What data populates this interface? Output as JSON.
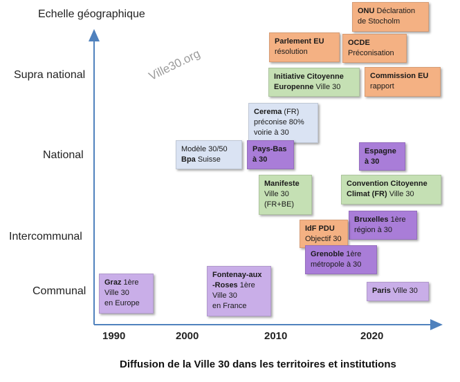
{
  "axis": {
    "y_title": "Echelle géographique",
    "levels": [
      "Supra national",
      "National",
      "Intercommunal",
      "Communal"
    ],
    "x_ticks": [
      "1990",
      "2000",
      "2010",
      "2020"
    ],
    "axis_color": "#4f81bd"
  },
  "title": "Diffusion de la Ville 30 dans les territoires et institutions",
  "watermark": "Ville30.org",
  "colors": {
    "orange": "#f4b183",
    "green": "#c5e0b4",
    "blue": "#dae3f3",
    "purple": "#a97dd8",
    "lilac": "#c9aee8"
  },
  "boxes": {
    "onu": {
      "bold": "ONU",
      "text": " Déclaration",
      "line2": "de Stocholm"
    },
    "parlement": {
      "bold": "Parlement EU",
      "line2": "résolution"
    },
    "ocde": {
      "bold": "OCDE",
      "line2": "Préconisation"
    },
    "initiative": {
      "bold": "Initiative Citoyenne",
      "line2_bold": "Europenne",
      "line2": " Ville 30"
    },
    "commission": {
      "bold": "Commission EU",
      "line2": "rapport"
    },
    "cerema": {
      "bold": "Cerema",
      "text": " (FR)",
      "line2": "préconise 80%",
      "line3": "voirie à 30"
    },
    "modele": {
      "line1": "Modèle 30/50",
      "bold2": "Bpa",
      "line2": " Suisse"
    },
    "paysbas": {
      "bold": "Pays-Bas",
      "line2": "à 30"
    },
    "espagne": {
      "bold": "Espagne",
      "line2": "à 30"
    },
    "manifeste": {
      "bold": "Manifeste",
      "line2": "Ville 30",
      "line3": "(FR+BE)"
    },
    "convention": {
      "bold": "Convention Citoyenne",
      "line2_bold": "Climat (FR)",
      "line2": " Ville 30"
    },
    "bruxelles": {
      "bold": "Bruxelles",
      "text": " 1ère",
      "line2": "région à 30"
    },
    "idf": {
      "bold": "IdF PDU",
      "line2": "Objectif 30"
    },
    "grenoble": {
      "bold": "Grenoble",
      "text": " 1ère",
      "line2": "métropole à 30"
    },
    "graz": {
      "bold": "Graz",
      "text": " 1ère",
      "line2": "Ville 30",
      "line3": "en Europe"
    },
    "fontenay": {
      "bold": "Fontenay-aux",
      "line2_bold": "-Roses",
      "line2": " 1ère",
      "line3": "Ville 30",
      "line4": "en France"
    },
    "paris": {
      "bold": "Paris",
      "text": " Ville 30"
    }
  }
}
